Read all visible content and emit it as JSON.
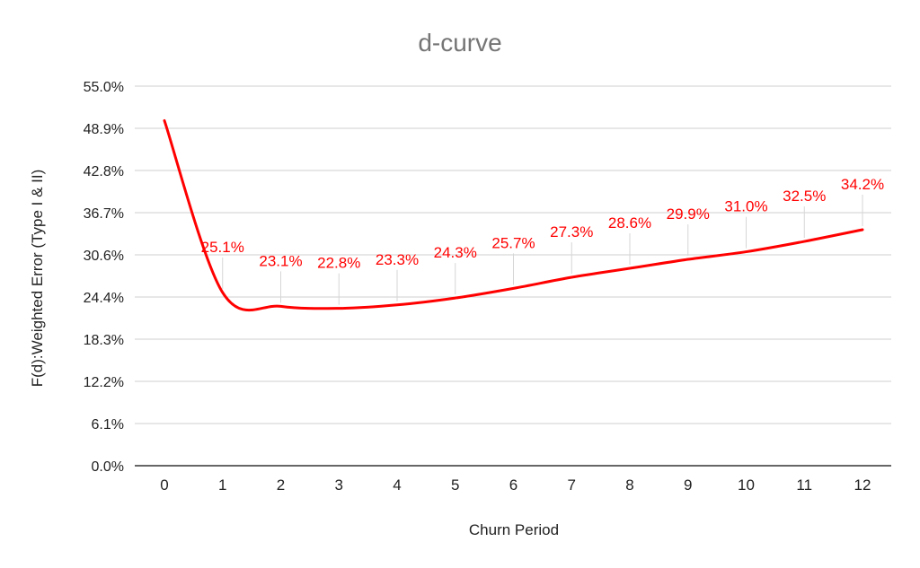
{
  "chart_data": {
    "type": "line",
    "title": "d-curve",
    "xlabel": "Churn Period",
    "ylabel": "F(d):Weighted Error (Type I & II)",
    "x": [
      0,
      1,
      2,
      3,
      4,
      5,
      6,
      7,
      8,
      9,
      10,
      11,
      12
    ],
    "x_tick_labels": [
      "0",
      "1",
      "2",
      "3",
      "4",
      "5",
      "6",
      "7",
      "8",
      "9",
      "10",
      "11",
      "12"
    ],
    "y_tick_labels": [
      "0.0%",
      "6.1%",
      "12.2%",
      "18.3%",
      "24.4%",
      "30.6%",
      "36.7%",
      "42.8%",
      "48.9%",
      "55.0%"
    ],
    "ylim": [
      0,
      55
    ],
    "grid": true,
    "legend": "none",
    "series": [
      {
        "color": "#ff0000",
        "smooth": true,
        "values": [
          50.0,
          25.1,
          23.1,
          22.8,
          23.3,
          24.3,
          25.7,
          27.3,
          28.6,
          29.9,
          31.0,
          32.5,
          34.2
        ],
        "labels": [
          "",
          "25.1%",
          "23.1%",
          "22.8%",
          "23.3%",
          "24.3%",
          "25.7%",
          "27.3%",
          "28.6%",
          "29.9%",
          "31.0%",
          "32.5%",
          "34.2%"
        ]
      }
    ]
  }
}
